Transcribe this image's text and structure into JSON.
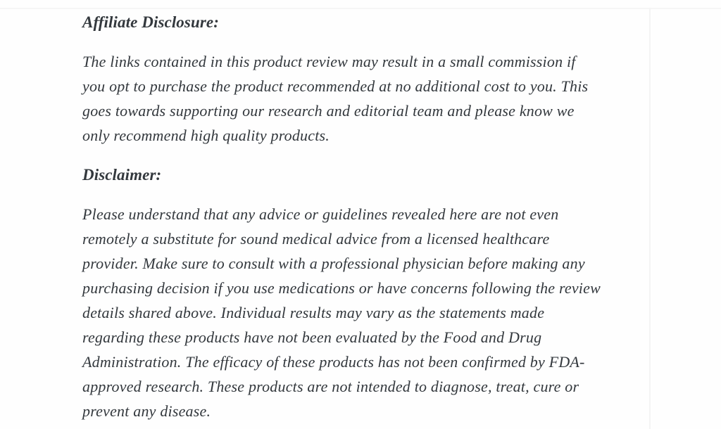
{
  "page": {
    "background_color": "#fefefe",
    "text_color": "#33383d"
  },
  "article": {
    "affiliate_heading": "Affiliate Disclosure:",
    "affiliate_paragraph": [
      "The links contained in this product review may result in a small commission if",
      "you opt to purchase the product recommended at no additional cost to you. This",
      "goes towards supporting our research and editorial team and please know we",
      "only recommend high quality products."
    ],
    "disclaimer_heading": "Disclaimer:",
    "disclaimer_paragraph": [
      "Please understand that any advice or guidelines revealed here are not even",
      "remotely a substitute for sound medical advice from a licensed healthcare",
      "provider. Make sure to consult with a professional physician before making any",
      "purchasing decision if you use medications or have concerns following the review",
      "details shared above. Individual results may vary as the statements made",
      "regarding these products have not been evaluated by the Food and Drug",
      "Administration. The efficacy of these products has not been confirmed by FDA-",
      "approved research. These products are not intended to diagnose, treat, cure or",
      "prevent any disease."
    ]
  }
}
